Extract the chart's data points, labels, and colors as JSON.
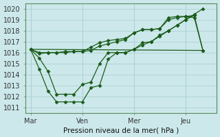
{
  "background_color": "#cce8ea",
  "grid_color": "#a8cccf",
  "line_color": "#1a5c1a",
  "xlabel": "Pression niveau de la mer( hPa )",
  "ylim": [
    1010.5,
    1020.5
  ],
  "yticks": [
    1011,
    1012,
    1013,
    1014,
    1015,
    1016,
    1017,
    1018,
    1019,
    1020
  ],
  "xtick_labels": [
    "Mar",
    "Ven",
    "Mer",
    "Jeu"
  ],
  "xtick_positions": [
    0,
    3,
    6,
    9
  ],
  "vlines": [
    0,
    3,
    6,
    9
  ],
  "xlim": [
    -0.3,
    10.8
  ],
  "series1_x": [
    0,
    0.5,
    1.0,
    1.5,
    2.0,
    2.5,
    3.0,
    3.5,
    4.0,
    4.5,
    5.0,
    5.5,
    6.0,
    6.5,
    7.0,
    7.5,
    8.0,
    8.5,
    9.0,
    9.5
  ],
  "series1_y": [
    1016.3,
    1016.0,
    1016.0,
    1016.0,
    1016.1,
    1016.1,
    1016.1,
    1016.2,
    1016.6,
    1016.8,
    1017.0,
    1017.2,
    1017.8,
    1018.1,
    1018.1,
    1018.2,
    1019.2,
    1019.3,
    1019.3,
    1019.4
  ],
  "series2_x": [
    0,
    0.5,
    1.0,
    1.5,
    2.0,
    2.5,
    3.0,
    3.5,
    4.0,
    4.5,
    5.0,
    5.5,
    6.0,
    6.5,
    7.0,
    7.5,
    8.0,
    8.5,
    9.0,
    9.5,
    10.0
  ],
  "series2_y": [
    1016.3,
    1015.9,
    1016.0,
    1016.0,
    1016.0,
    1016.1,
    1016.1,
    1016.5,
    1016.9,
    1017.1,
    1017.2,
    1017.3,
    1017.8,
    1018.1,
    1018.1,
    1018.2,
    1019.0,
    1019.2,
    1019.3,
    1019.2,
    1016.2
  ],
  "series3_x": [
    0,
    0.5,
    1.0,
    1.5,
    2.0,
    2.5,
    3.0,
    3.5,
    4.0,
    4.5,
    5.0,
    5.5,
    6.0,
    6.5,
    7.0,
    7.5,
    8.0,
    8.5,
    9.0,
    9.5,
    10.0
  ],
  "series3_y": [
    1016.3,
    1014.5,
    1012.5,
    1011.5,
    1011.5,
    1011.5,
    1011.5,
    1012.8,
    1013.0,
    1015.4,
    1016.0,
    1016.0,
    1016.3,
    1016.9,
    1017.0,
    1017.6,
    1018.0,
    1018.5,
    1019.0,
    1019.5,
    1020.0
  ],
  "series4_x": [
    0,
    0.5,
    1.0,
    1.5,
    2.0,
    2.5,
    3.0,
    3.5,
    4.0,
    4.5,
    5.0,
    5.5,
    6.0,
    6.5,
    7.0,
    7.5,
    8.0,
    8.5,
    9.0,
    9.5,
    10.0
  ],
  "series4_y": [
    1016.3,
    1015.5,
    1014.3,
    1012.2,
    1012.2,
    1012.2,
    1013.1,
    1013.3,
    1015.0,
    1016.0,
    1016.0,
    1016.0,
    1016.3,
    1016.7,
    1017.0,
    1017.5,
    1018.0,
    1018.5,
    1019.0,
    1019.4,
    1016.2
  ],
  "series5_x": [
    0,
    10.0
  ],
  "series5_y": [
    1016.3,
    1016.2
  ]
}
